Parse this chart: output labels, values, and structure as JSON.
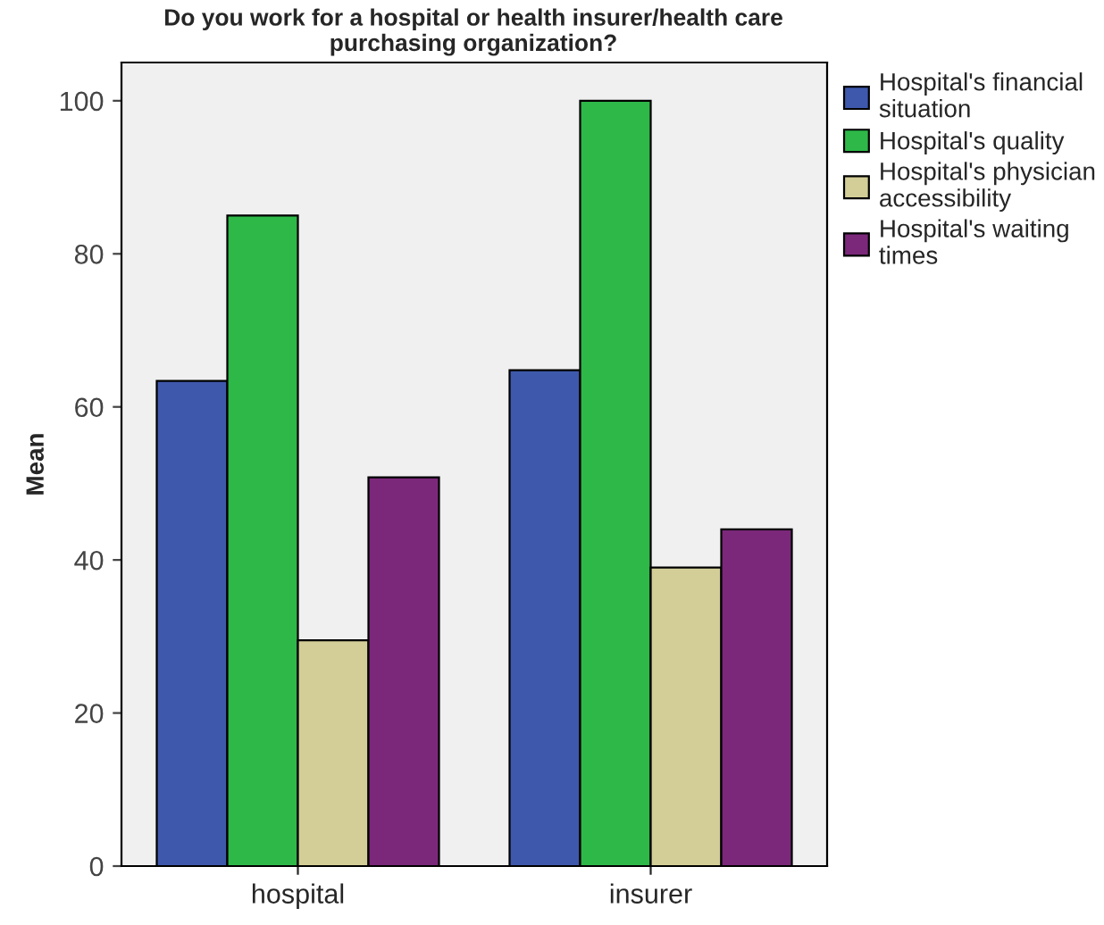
{
  "chart_data": {
    "type": "bar",
    "title": "Do you work for a hospital or health insurer/health care purchasing organization?",
    "ylabel": "Mean",
    "categories": [
      "hospital",
      "insurer"
    ],
    "series": [
      {
        "name": "Hospital's financial\nsituation",
        "color": "#3e58ac",
        "values": [
          63.4,
          64.8
        ]
      },
      {
        "name": "Hospital's quality",
        "color": "#2eb848",
        "values": [
          85,
          100
        ]
      },
      {
        "name": "Hospital's physician\naccessibility",
        "color": "#d3ce97",
        "values": [
          29.5,
          39
        ]
      },
      {
        "name": "Hospital's waiting\ntimes",
        "color": "#7b287a",
        "values": [
          50.8,
          44
        ]
      }
    ],
    "ylim": [
      0,
      105
    ],
    "yticks": [
      0,
      20,
      40,
      60,
      80,
      100
    ],
    "grid": false,
    "legend": "top right"
  }
}
